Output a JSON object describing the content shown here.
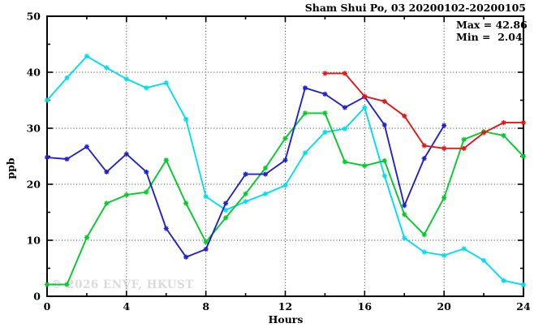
{
  "header": {
    "title": "Sham Shui Po, 03 20200102-20200105"
  },
  "stats": {
    "max_label": "Max = 42.86",
    "min_label": "Min =  2.04"
  },
  "watermark": "© 2026 ENVF, HKUST",
  "axes": {
    "ylabel": "ppb",
    "xlabel": "Hours"
  },
  "chart_data": {
    "type": "line",
    "title": "Sham Shui Po, 03 20200102-20200105",
    "xlabel": "Hours",
    "ylabel": "ppb",
    "xlim": [
      0,
      24
    ],
    "ylim": [
      0,
      50
    ],
    "x_major_ticks": [
      0,
      4,
      8,
      12,
      16,
      20,
      24
    ],
    "x_minor_step": 2,
    "y_major_ticks": [
      0,
      10,
      20,
      30,
      40,
      50
    ],
    "y_minor_step": 5,
    "grid": "dotted lines at major ticks, full border box with inward ticks",
    "legend": "none",
    "annotations": {
      "max": 42.86,
      "min": 2.04
    },
    "marker": "asterisk",
    "x": [
      0,
      1,
      2,
      3,
      4,
      5,
      6,
      7,
      8,
      9,
      10,
      11,
      12,
      13,
      14,
      15,
      16,
      17,
      18,
      19,
      20,
      21,
      22,
      23,
      24
    ],
    "series": [
      {
        "name": "day-1-cyan",
        "color": "#00DFEE",
        "values": [
          35.0,
          39.0,
          42.86,
          40.8,
          38.8,
          37.2,
          38.1,
          31.6,
          17.8,
          15.4,
          16.9,
          18.3,
          19.8,
          25.6,
          29.3,
          29.9,
          33.7,
          21.5,
          10.4,
          7.9,
          7.3,
          8.5,
          6.4,
          2.8,
          2.04
        ]
      },
      {
        "name": "day-2-green",
        "color": "#00CC2A",
        "values": [
          2.1,
          2.1,
          10.5,
          16.6,
          18.1,
          18.6,
          24.3,
          16.6,
          9.7,
          14.0,
          18.3,
          22.9,
          28.2,
          32.7,
          32.7,
          24.0,
          23.3,
          24.2,
          14.6,
          11.0,
          17.6,
          28.0,
          29.4,
          28.7,
          25.0
        ]
      },
      {
        "name": "day-3-blue",
        "color": "#2222CC",
        "values": [
          24.8,
          24.5,
          26.7,
          22.2,
          25.4,
          22.2,
          12.1,
          7.0,
          8.4,
          16.6,
          21.8,
          21.8,
          24.3,
          37.2,
          36.1,
          33.7,
          35.6,
          30.6,
          16.2,
          24.6,
          30.5,
          null,
          null,
          null,
          null
        ]
      },
      {
        "name": "day-4-red",
        "color": "#E01818",
        "values": [
          null,
          null,
          null,
          null,
          null,
          null,
          null,
          null,
          null,
          null,
          null,
          null,
          null,
          null,
          39.8,
          39.8,
          35.7,
          34.8,
          32.2,
          26.9,
          26.4,
          26.4,
          29.2,
          31.0,
          31.0
        ]
      }
    ]
  }
}
